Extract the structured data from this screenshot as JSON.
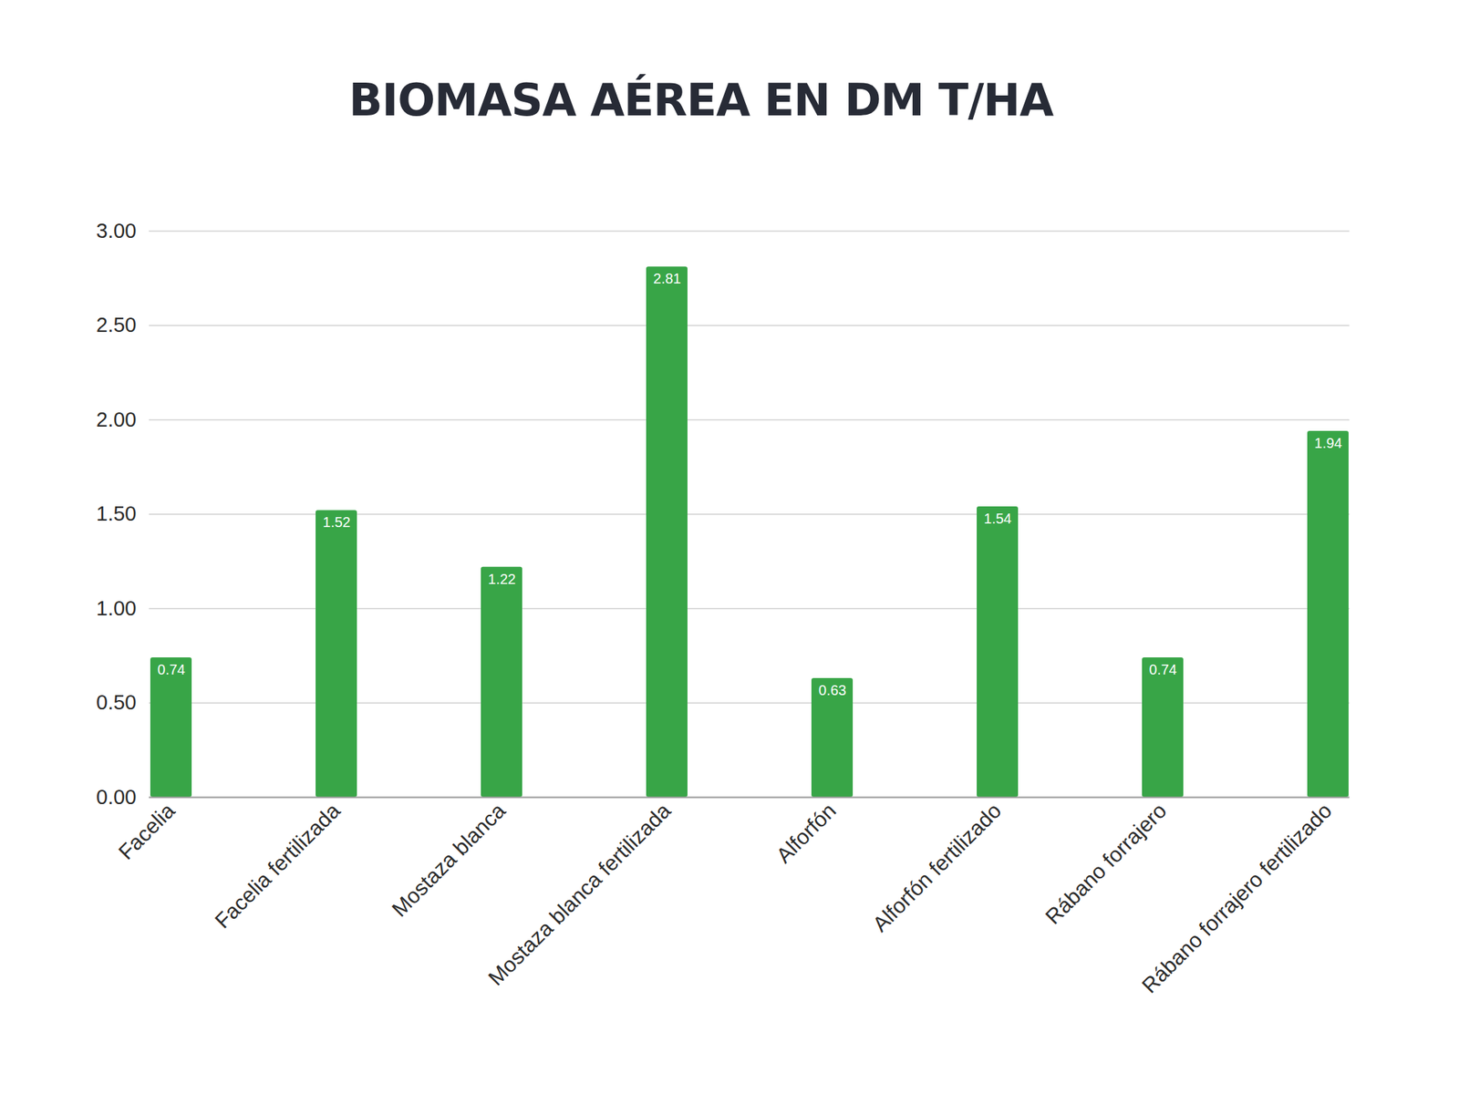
{
  "chart_data": {
    "type": "bar",
    "title": "BIOMASA AÉREA EN DM T/HA",
    "categories": [
      "Facelia",
      "Facelia fertilizada",
      "Mostaza blanca",
      "Mostaza blanca fertilizada",
      "Alforfón",
      "Alforfón fertilizado",
      "Rábano forrajero",
      "Rábano forrajero fertilizado"
    ],
    "values": [
      0.74,
      1.52,
      1.22,
      2.81,
      0.63,
      1.54,
      0.74,
      1.94
    ],
    "color": "#38a547",
    "ylim": [
      0,
      3
    ],
    "yticks": [
      {
        "value": 0,
        "label": "0.00"
      },
      {
        "value": 0.5,
        "label": "0.50"
      },
      {
        "value": 1,
        "label": "1.00"
      },
      {
        "value": 1.5,
        "label": "1.50"
      },
      {
        "value": 2,
        "label": "2.00"
      },
      {
        "value": 2.5,
        "label": "2.50"
      },
      {
        "value": 3,
        "label": "3.00"
      }
    ],
    "grid": true,
    "data_labels": true
  }
}
